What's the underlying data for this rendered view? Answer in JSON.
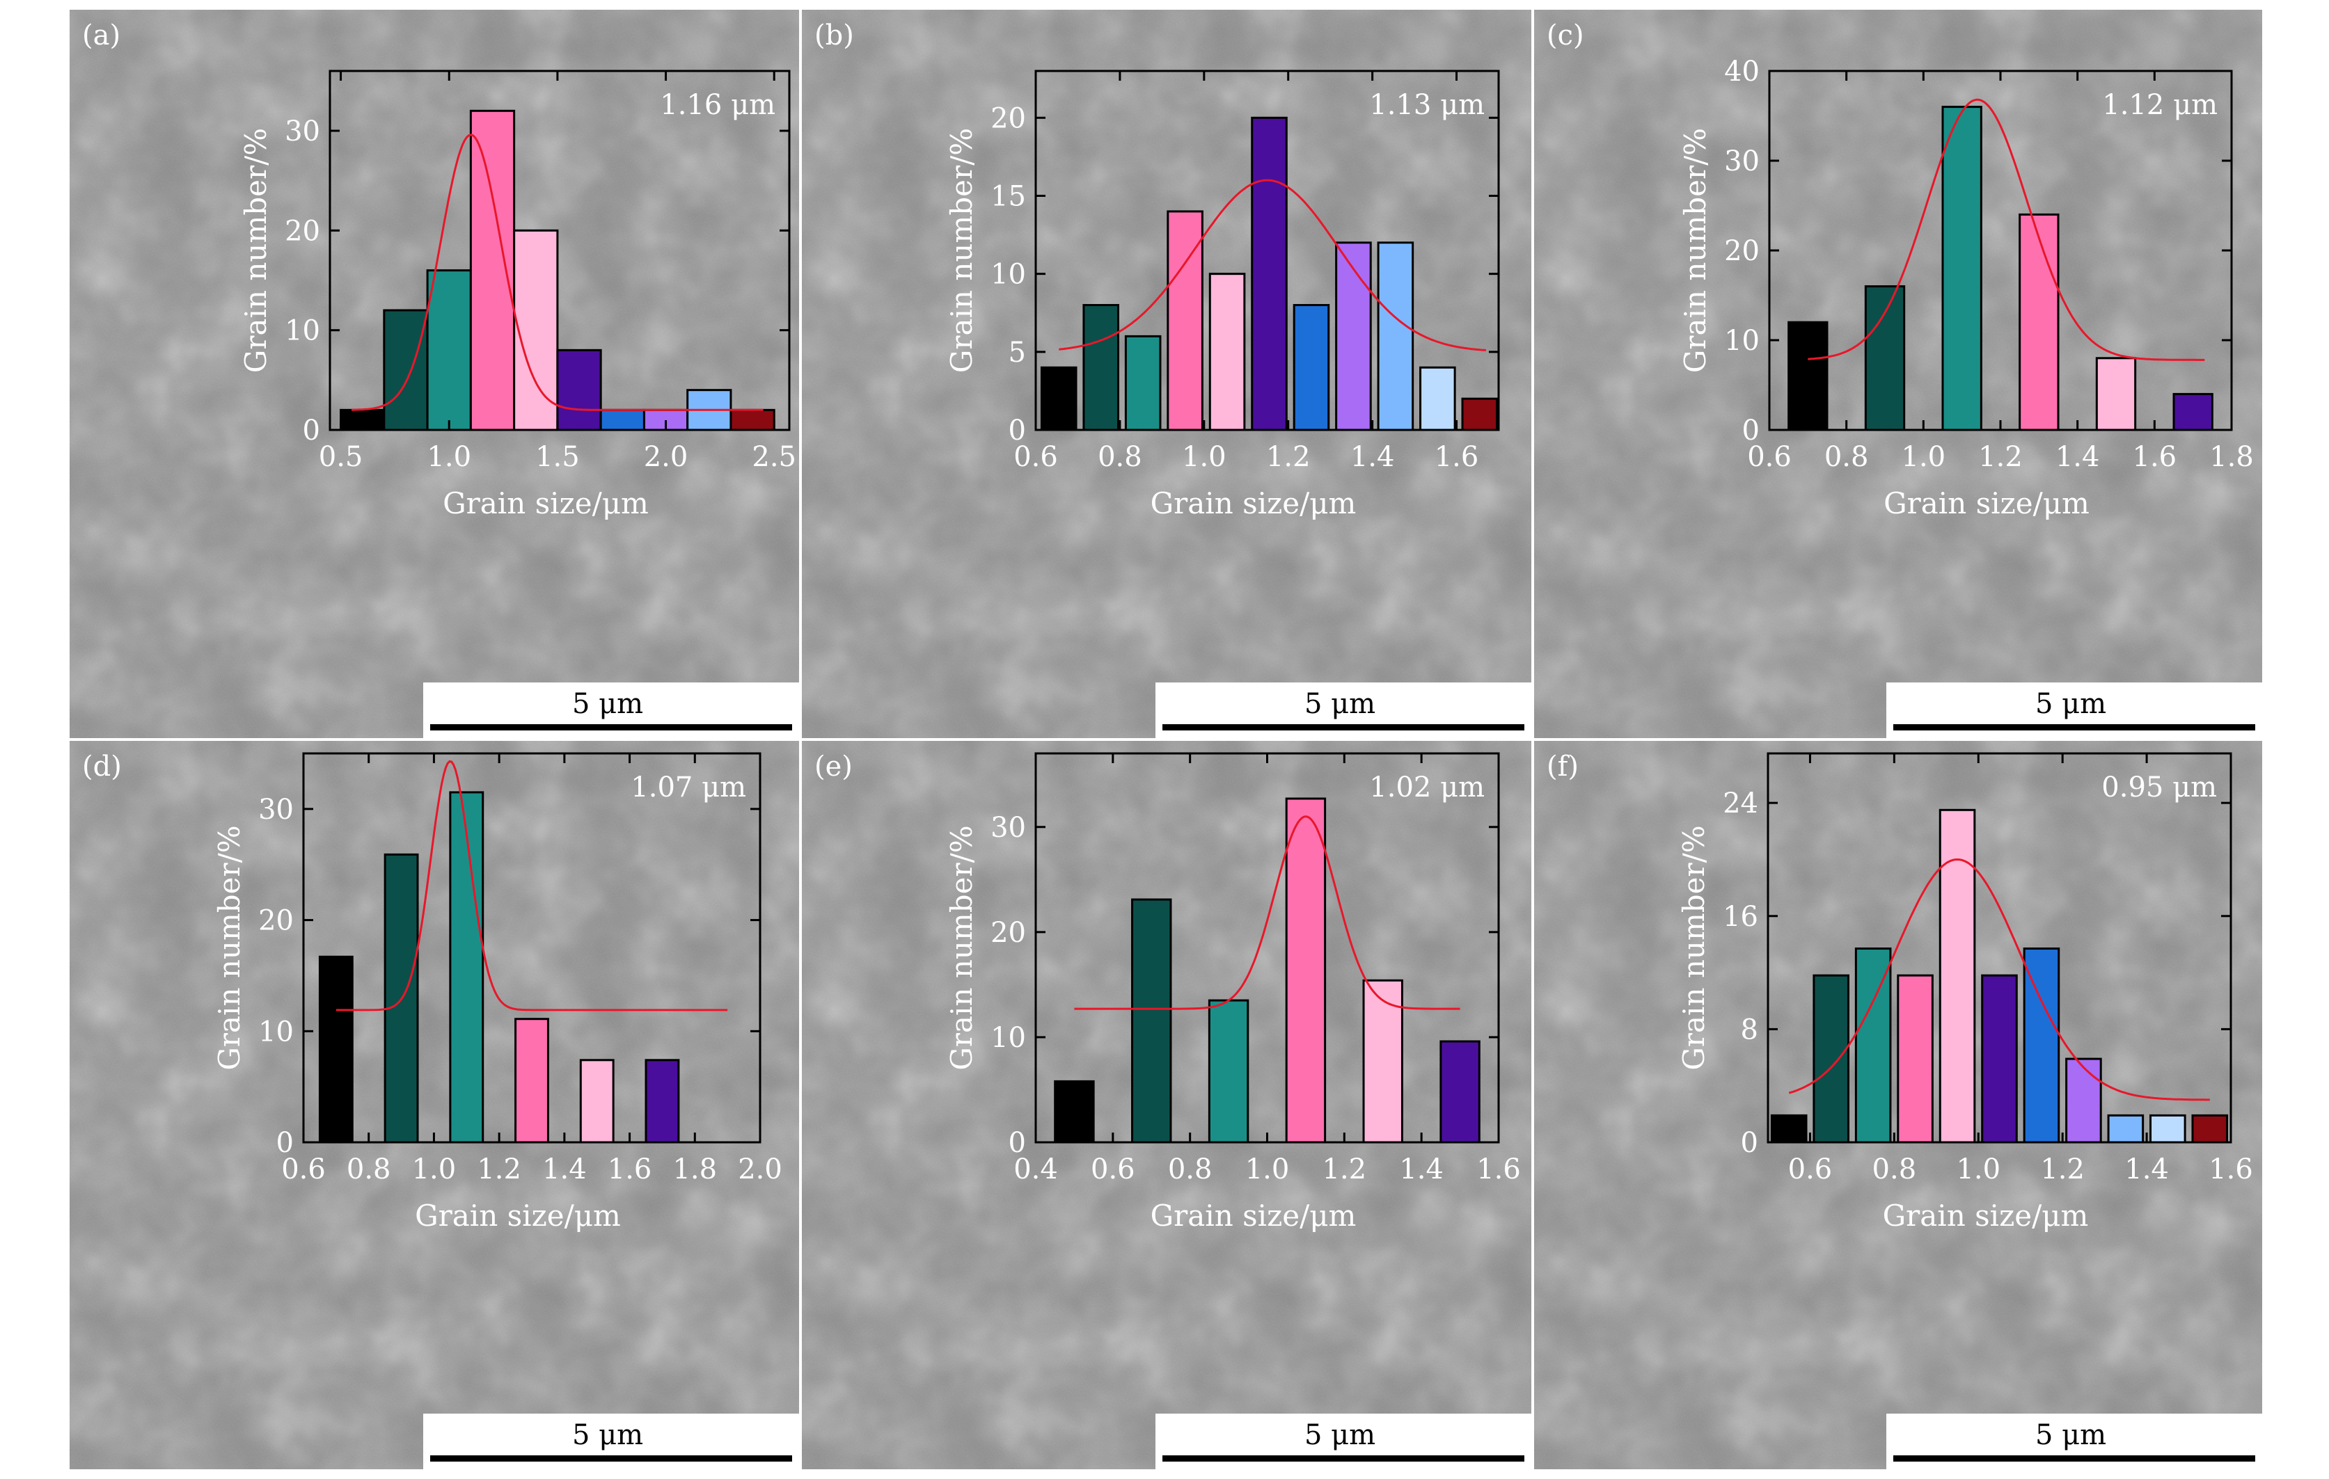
{
  "figure": {
    "panels": [
      {
        "label": "(a)",
        "mean_label": "1.16 μm",
        "scale_bar_label": "5 μm",
        "chart_data": {
          "type": "bar",
          "title": "",
          "xlabel": "Grain size/μm",
          "ylabel": "Grain number/%",
          "xlim": [
            0.45,
            2.57
          ],
          "ylim": [
            0,
            36
          ],
          "xticks": [
            "0.5",
            "1.0",
            "1.5",
            "2.0",
            "2.5"
          ],
          "yticks": [
            "0",
            "10",
            "20",
            "30"
          ],
          "bar_width": 0.2,
          "x": [
            0.6,
            0.8,
            1.0,
            1.2,
            1.4,
            1.6,
            1.8,
            2.0,
            2.2,
            2.4
          ],
          "values": [
            2,
            12,
            16,
            32,
            20,
            8,
            2,
            2,
            4,
            2
          ],
          "colors": [
            "#000000",
            "#0b4f4a",
            "#1a8f88",
            "#ff70ae",
            "#ffb7da",
            "#4a0e9c",
            "#1d6fd8",
            "#a86cf5",
            "#7db8ff",
            "#8a0a12"
          ],
          "fit": {
            "mean": 1.1,
            "sigma": 0.14,
            "amp": 27.6,
            "base": 2.0,
            "xrange": [
              0.55,
              2.45
            ],
            "color": "#e8172a"
          }
        }
      },
      {
        "label": "(b)",
        "mean_label": "1.13 μm",
        "scale_bar_label": "5 μm",
        "chart_data": {
          "type": "bar",
          "title": "",
          "xlabel": "Grain size/μm",
          "ylabel": "Grain number/%",
          "xlim": [
            0.6,
            1.7
          ],
          "ylim": [
            0,
            23
          ],
          "xticks": [
            "0.6",
            "0.8",
            "1.0",
            "1.2",
            "1.4",
            "1.6"
          ],
          "yticks": [
            "0",
            "5",
            "10",
            "15",
            "20"
          ],
          "bar_width": 0.082,
          "x": [
            0.655,
            0.755,
            0.855,
            0.955,
            1.055,
            1.155,
            1.255,
            1.355,
            1.455,
            1.555,
            1.655
          ],
          "values": [
            4,
            8,
            6,
            14,
            10,
            20,
            8,
            12,
            12,
            4,
            2
          ],
          "colors": [
            "#000000",
            "#0b4f4a",
            "#1a8f88",
            "#ff70ae",
            "#ffb7da",
            "#4a0e9c",
            "#1d6fd8",
            "#a86cf5",
            "#7db8ff",
            "#bcdcff",
            "#8a0a12"
          ],
          "fit": {
            "mean": 1.15,
            "sigma": 0.17,
            "amp": 11.0,
            "base": 5.0,
            "xrange": [
              0.655,
              1.67
            ],
            "color": "#e8172a"
          }
        }
      },
      {
        "label": "(c)",
        "mean_label": "1.12 μm",
        "scale_bar_label": "5 μm",
        "chart_data": {
          "type": "bar",
          "title": "",
          "xlabel": "Grain size/μm",
          "ylabel": "Grain number/%",
          "xlim": [
            0.6,
            1.8
          ],
          "ylim": [
            0,
            40
          ],
          "xticks": [
            "0.6",
            "0.8",
            "1.0",
            "1.2",
            "1.4",
            "1.6",
            "1.8"
          ],
          "yticks": [
            "0",
            "10",
            "20",
            "30",
            "40"
          ],
          "bar_width": 0.1,
          "x": [
            0.7,
            0.9,
            1.1,
            1.3,
            1.5,
            1.7
          ],
          "values": [
            12,
            16,
            36,
            24,
            8,
            4
          ],
          "colors": [
            "#000000",
            "#0b4f4a",
            "#1a8f88",
            "#ff70ae",
            "#ffb7da",
            "#4a0e9c"
          ],
          "fit": {
            "mean": 1.14,
            "sigma": 0.13,
            "amp": 29.0,
            "base": 7.8,
            "xrange": [
              0.7,
              1.73
            ],
            "color": "#e8172a"
          }
        }
      },
      {
        "label": "(d)",
        "mean_label": "1.07 μm",
        "scale_bar_label": "5 μm",
        "chart_data": {
          "type": "bar",
          "title": "",
          "xlabel": "Grain size/μm",
          "ylabel": "Grain number/%",
          "xlim": [
            0.6,
            2.0
          ],
          "ylim": [
            0,
            35
          ],
          "xticks": [
            "0.6",
            "0.8",
            "1.0",
            "1.2",
            "1.4",
            "1.6",
            "1.8",
            "2.0"
          ],
          "yticks": [
            "0",
            "10",
            "20",
            "30"
          ],
          "bar_width": 0.1,
          "x": [
            0.7,
            0.9,
            1.1,
            1.3,
            1.5,
            1.7
          ],
          "values": [
            16.7,
            25.9,
            31.5,
            11.1,
            7.4,
            7.4
          ],
          "colors": [
            "#000000",
            "#0b4f4a",
            "#1a8f88",
            "#ff70ae",
            "#ffb7da",
            "#4a0e9c"
          ],
          "fit": {
            "mean": 1.05,
            "sigma": 0.06,
            "amp": 22.4,
            "base": 11.9,
            "xrange": [
              0.7,
              1.9
            ],
            "color": "#e8172a"
          }
        }
      },
      {
        "label": "(e)",
        "mean_label": "1.02 μm",
        "scale_bar_label": "5 μm",
        "chart_data": {
          "type": "bar",
          "title": "",
          "xlabel": "Grain size/μm",
          "ylabel": "Grain number/%",
          "xlim": [
            0.4,
            1.6
          ],
          "ylim": [
            0,
            37
          ],
          "xticks": [
            "0.4",
            "0.6",
            "0.8",
            "1.0",
            "1.2",
            "1.4",
            "1.6"
          ],
          "yticks": [
            "0",
            "10",
            "20",
            "30"
          ],
          "bar_width": 0.1,
          "x": [
            0.5,
            0.7,
            0.9,
            1.1,
            1.3,
            1.5
          ],
          "values": [
            5.8,
            23.1,
            13.5,
            32.7,
            15.4,
            9.6
          ],
          "colors": [
            "#000000",
            "#0b4f4a",
            "#1a8f88",
            "#ff70ae",
            "#ffb7da",
            "#4a0e9c"
          ],
          "fit": {
            "mean": 1.1,
            "sigma": 0.08,
            "amp": 18.3,
            "base": 12.7,
            "xrange": [
              0.5,
              1.5
            ],
            "color": "#e8172a"
          }
        }
      },
      {
        "label": "(f)",
        "mean_label": "0.95 μm",
        "scale_bar_label": "5 μm",
        "chart_data": {
          "type": "bar",
          "title": "",
          "xlabel": "Grain size/μm",
          "ylabel": "Grain number/%",
          "xlim": [
            0.5,
            1.6
          ],
          "ylim": [
            0,
            27.5
          ],
          "xticks": [
            "0.6",
            "0.8",
            "1.0",
            "1.2",
            "1.4",
            "1.6"
          ],
          "yticks": [
            "0",
            "8",
            "16",
            "24"
          ],
          "bar_width": 0.082,
          "x": [
            0.55,
            0.65,
            0.75,
            0.85,
            0.95,
            1.05,
            1.15,
            1.25,
            1.35,
            1.45,
            1.55
          ],
          "values": [
            1.9,
            11.8,
            13.7,
            11.8,
            23.5,
            11.8,
            13.7,
            5.9,
            1.9,
            1.9,
            1.9
          ],
          "colors": [
            "#000000",
            "#0b4f4a",
            "#1a8f88",
            "#ff70ae",
            "#ffb7da",
            "#4a0e9c",
            "#1d6fd8",
            "#a86cf5",
            "#7db8ff",
            "#bcdcff",
            "#8a0a12"
          ],
          "fit": {
            "mean": 0.95,
            "sigma": 0.15,
            "amp": 17.0,
            "base": 3.0,
            "xrange": [
              0.55,
              1.55
            ],
            "color": "#e8172a"
          }
        }
      }
    ]
  }
}
